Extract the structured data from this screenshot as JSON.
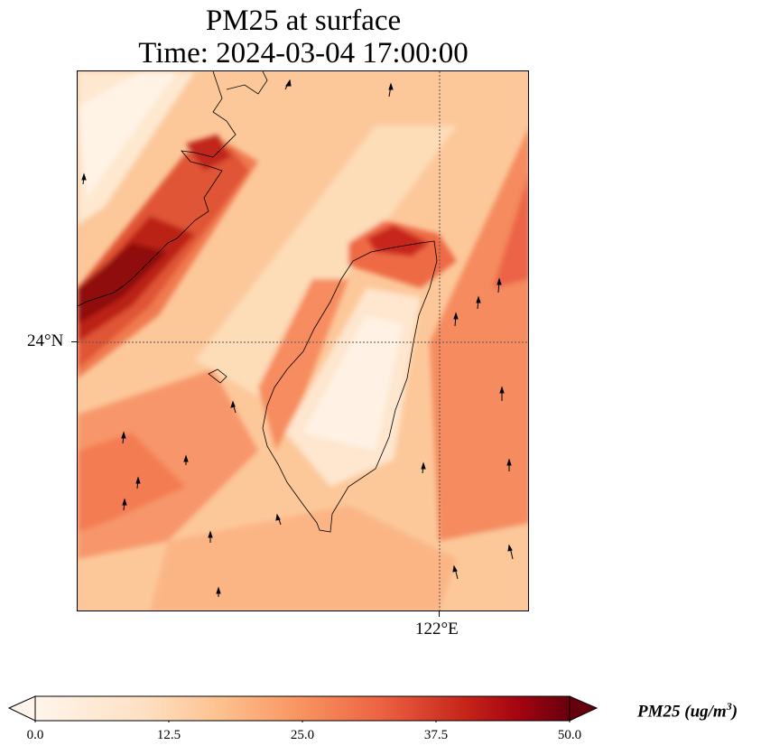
{
  "title": {
    "line1": "PM25 at surface",
    "line2": "Time: 2024-03-04 17:00:00"
  },
  "axes": {
    "latitude_label": "24°N",
    "longitude_label": "122°E"
  },
  "colorbar": {
    "label_prefix": "PM25 (ug/m",
    "label_exponent": "3",
    "label_suffix": ")",
    "ticks": [
      "0.0",
      "12.5",
      "25.0",
      "37.5",
      "50.0"
    ],
    "range": [
      0.0,
      50.0
    ],
    "extend": "both",
    "colors": [
      "#fff5eb",
      "#fdd9b4",
      "#fdae6b",
      "#f3714a",
      "#cb2a16",
      "#9a0000",
      "#67000d"
    ]
  },
  "map": {
    "gridlines": "dotted",
    "vector_field": "wind arrows",
    "features": [
      "Taiwan coastline",
      "China coastline"
    ]
  }
}
